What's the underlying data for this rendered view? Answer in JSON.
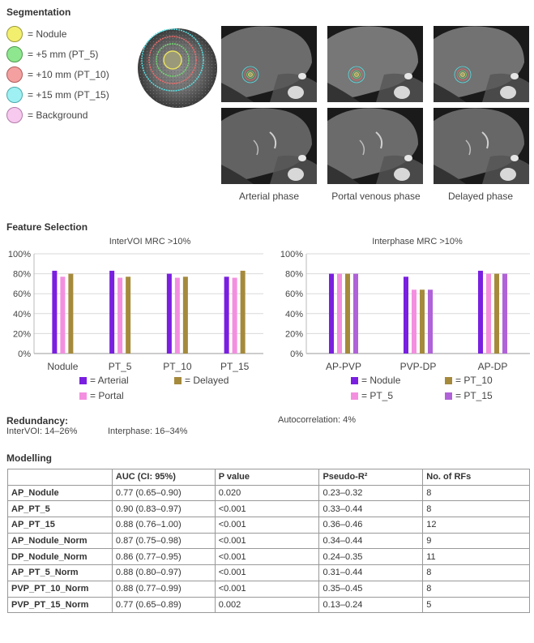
{
  "segmentation": {
    "title": "Segmentation",
    "legend": [
      {
        "label": "= Nodule",
        "color": "#f3ef6e",
        "border": "#9a9a3a"
      },
      {
        "label": "= +5 mm (PT_5)",
        "color": "#8ee68e",
        "border": "#4c9a4c"
      },
      {
        "label": "= +10 mm (PT_10)",
        "color": "#f4a0a0",
        "border": "#b05a5a"
      },
      {
        "label": "= +15 mm (PT_15)",
        "color": "#9ff0f2",
        "border": "#4aa9ab"
      },
      {
        "label": "= Background",
        "color": "#f7c9ef",
        "border": "#b07aa8"
      }
    ],
    "phases": [
      "Arterial phase",
      "Portal venous phase",
      "Delayed phase"
    ]
  },
  "feature_selection": {
    "title": "Feature Selection",
    "chart1_title": "InterVOI MRC >10%",
    "chart2_title": "Interphase MRC >10%",
    "legend1": [
      {
        "label": "= Arterial",
        "color": "#7a1fe0"
      },
      {
        "label": "= Delayed",
        "color": "#a58a3c"
      },
      {
        "label": "= Portal",
        "color": "#f48fe0"
      }
    ],
    "legend2": [
      {
        "label": "= Nodule",
        "color": "#7a1fe0"
      },
      {
        "label": "= PT_10",
        "color": "#a58a3c"
      },
      {
        "label": "= PT_5",
        "color": "#f48fe0"
      },
      {
        "label": "= PT_15",
        "color": "#b062d8"
      }
    ]
  },
  "chart_data": [
    {
      "type": "bar",
      "title": "InterVOI MRC >10%",
      "categories": [
        "Nodule",
        "PT_5",
        "PT_10",
        "PT_15"
      ],
      "yticks": [
        "0%",
        "20%",
        "40%",
        "60%",
        "80%",
        "100%"
      ],
      "ylim": [
        0,
        100
      ],
      "series": [
        {
          "name": "Arterial",
          "color": "#7a1fe0",
          "values": [
            83,
            83,
            80,
            77
          ]
        },
        {
          "name": "Portal",
          "color": "#f48fe0",
          "values": [
            77,
            76,
            76,
            76
          ]
        },
        {
          "name": "Delayed",
          "color": "#a58a3c",
          "values": [
            80,
            77,
            77,
            83
          ]
        }
      ]
    },
    {
      "type": "bar",
      "title": "Interphase MRC >10%",
      "categories": [
        "AP-PVP",
        "PVP-DP",
        "AP-DP"
      ],
      "yticks": [
        "0%",
        "20%",
        "40%",
        "60%",
        "80%",
        "100%"
      ],
      "ylim": [
        0,
        100
      ],
      "series": [
        {
          "name": "Nodule",
          "color": "#7a1fe0",
          "values": [
            80,
            77,
            83
          ]
        },
        {
          "name": "PT_5",
          "color": "#f48fe0",
          "values": [
            80,
            64,
            80
          ]
        },
        {
          "name": "PT_10",
          "color": "#a58a3c",
          "values": [
            80,
            64,
            80
          ]
        },
        {
          "name": "PT_15",
          "color": "#b062d8",
          "values": [
            80,
            64,
            80
          ]
        }
      ]
    }
  ],
  "redundancy": {
    "title": "Redundancy:",
    "intervoi": "InterVOI: 14–26%",
    "interphase": "Interphase: 16–34%",
    "autocorrelation": "Autocorrelation: 4%"
  },
  "modelling": {
    "title": "Modelling",
    "headers": [
      "",
      "AUC (CI: 95%)",
      "P value",
      "Pseudo-R²",
      "No. of RFs"
    ],
    "rows": [
      [
        "AP_Nodule",
        "0.77 (0.65–0.90)",
        "0.020",
        "0.23–0.32",
        "8"
      ],
      [
        "AP_PT_5",
        "0.90 (0.83–0.97)",
        "<0.001",
        "0.33–0.44",
        "8"
      ],
      [
        "AP_PT_15",
        "0.88 (0.76–1.00)",
        "<0.001",
        "0.36–0.46",
        "12"
      ],
      [
        "AP_Nodule_Norm",
        "0.87 (0.75–0.98)",
        "<0.001",
        "0.34–0.44",
        "9"
      ],
      [
        "DP_Nodule_Norm",
        "0.86 (0.77–0.95)",
        "<0.001",
        "0.24–0.35",
        "11"
      ],
      [
        "AP_PT_5_Norm",
        "0.88 (0.80–0.97)",
        "<0.001",
        "0.31–0.44",
        "8"
      ],
      [
        "PVP_PT_10_Norm",
        "0.88 (0.77–0.99)",
        "<0.001",
        "0.35–0.45",
        "8"
      ],
      [
        "PVP_PT_15_Norm",
        "0.77 (0.65–0.89)",
        "0.002",
        "0.13–0.24",
        "5"
      ]
    ]
  }
}
